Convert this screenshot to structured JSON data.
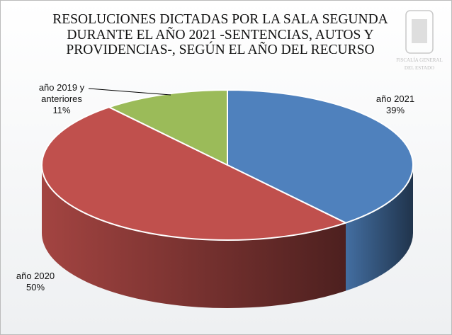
{
  "chart_data": {
    "type": "pie3d",
    "title": "RESOLUCIONES DICTADAS POR LA SALA SEGUNDA DURANTE EL AÑO 2021 -SENTENCIAS, AUTOS Y PROVIDENCIAS-, SEGÚN EL AÑO DEL RECURSO",
    "categories": [
      "año 2021",
      "año 2020",
      "año 2019 y anteriores"
    ],
    "values": [
      39,
      50,
      11
    ],
    "value_labels": [
      "39%",
      "50%",
      "11%"
    ],
    "colors": [
      "#4f81bd",
      "#c0504d",
      "#9bbb59"
    ]
  },
  "logo": {
    "lines": [
      "FISCALÍA GENERAL",
      "DEL ESTADO"
    ]
  }
}
